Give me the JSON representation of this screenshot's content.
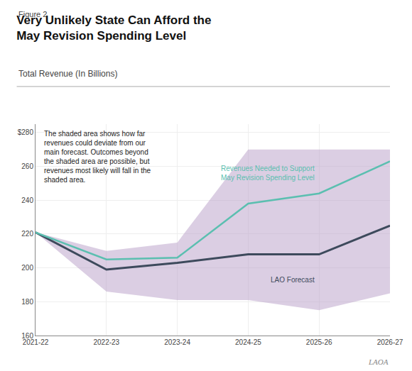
{
  "chart_data": {
    "type": "line",
    "figure_label": "Figure 2",
    "title": "Very Unlikely State Can Afford the\nMay Revision Spending Level",
    "subtitle": "Total Revenue (In Billions)",
    "categories": [
      "2021-22",
      "2022-23",
      "2023-24",
      "2024-25",
      "2025-26",
      "2026-27"
    ],
    "series": [
      {
        "name": "LAO Forecast",
        "color": "#3d4a5c",
        "values": [
          221,
          199,
          203,
          208,
          208,
          225
        ]
      },
      {
        "name": "Revenues Needed to Support\nMay Revision Spending Level",
        "color": "#5bbfb0",
        "values": [
          221,
          205,
          206,
          238,
          244,
          263
        ]
      }
    ],
    "band": {
      "upper": [
        221,
        210,
        215,
        270,
        270,
        270
      ],
      "lower": [
        221,
        186,
        181,
        181,
        175,
        185
      ],
      "color": "#b89ec8"
    },
    "annotation": "The shaded area shows how far\nrevenues could deviate from our\nmain forecast. Outcomes beyond\nthe shaded area are possible, but\nrevenues most likely will fall in the\nshaded area.",
    "footer": "LAOA",
    "ylim": [
      160,
      285
    ],
    "yticks": [
      160,
      180,
      200,
      220,
      240,
      260,
      {
        "value": 280,
        "label": "$280"
      }
    ],
    "grid": true
  }
}
